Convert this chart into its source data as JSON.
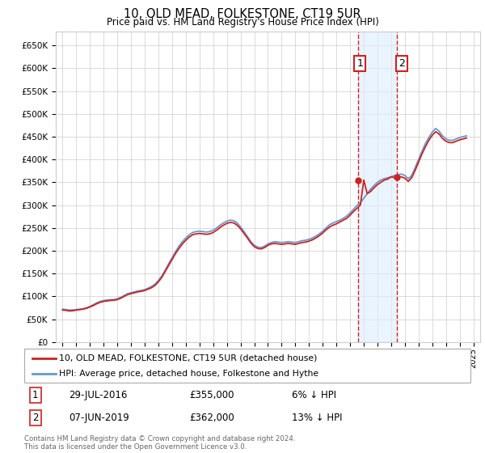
{
  "title": "10, OLD MEAD, FOLKESTONE, CT19 5UR",
  "subtitle": "Price paid vs. HM Land Registry's House Price Index (HPI)",
  "ylabel_ticks": [
    "£0",
    "£50K",
    "£100K",
    "£150K",
    "£200K",
    "£250K",
    "£300K",
    "£350K",
    "£400K",
    "£450K",
    "£500K",
    "£550K",
    "£600K",
    "£650K"
  ],
  "ytick_values": [
    0,
    50000,
    100000,
    150000,
    200000,
    250000,
    300000,
    350000,
    400000,
    450000,
    500000,
    550000,
    600000,
    650000
  ],
  "ylim": [
    0,
    680000
  ],
  "xlim_start": 1994.5,
  "xlim_end": 2025.5,
  "background_color": "#ffffff",
  "grid_color": "#cccccc",
  "hpi_color": "#6699cc",
  "price_color": "#cc2222",
  "marker1_x": 2016.57,
  "marker1_y": 355000,
  "marker2_x": 2019.44,
  "marker2_y": 362000,
  "marker_shading_color": "#ddeeff",
  "legend_label1": "10, OLD MEAD, FOLKESTONE, CT19 5UR (detached house)",
  "legend_label2": "HPI: Average price, detached house, Folkestone and Hythe",
  "annotation1_label": "1",
  "annotation2_label": "2",
  "note1_num": "1",
  "note1_date": "29-JUL-2016",
  "note1_price": "£355,000",
  "note1_hpi": "6% ↓ HPI",
  "note2_num": "2",
  "note2_date": "07-JUN-2019",
  "note2_price": "£362,000",
  "note2_hpi": "13% ↓ HPI",
  "copyright": "Contains HM Land Registry data © Crown copyright and database right 2024.\nThis data is licensed under the Open Government Licence v3.0.",
  "hpi_data": {
    "years": [
      1995.0,
      1995.25,
      1995.5,
      1995.75,
      1996.0,
      1996.25,
      1996.5,
      1996.75,
      1997.0,
      1997.25,
      1997.5,
      1997.75,
      1998.0,
      1998.25,
      1998.5,
      1998.75,
      1999.0,
      1999.25,
      1999.5,
      1999.75,
      2000.0,
      2000.25,
      2000.5,
      2000.75,
      2001.0,
      2001.25,
      2001.5,
      2001.75,
      2002.0,
      2002.25,
      2002.5,
      2002.75,
      2003.0,
      2003.25,
      2003.5,
      2003.75,
      2004.0,
      2004.25,
      2004.5,
      2004.75,
      2005.0,
      2005.25,
      2005.5,
      2005.75,
      2006.0,
      2006.25,
      2006.5,
      2006.75,
      2007.0,
      2007.25,
      2007.5,
      2007.75,
      2008.0,
      2008.25,
      2008.5,
      2008.75,
      2009.0,
      2009.25,
      2009.5,
      2009.75,
      2010.0,
      2010.25,
      2010.5,
      2010.75,
      2011.0,
      2011.25,
      2011.5,
      2011.75,
      2012.0,
      2012.25,
      2012.5,
      2012.75,
      2013.0,
      2013.25,
      2013.5,
      2013.75,
      2014.0,
      2014.25,
      2014.5,
      2014.75,
      2015.0,
      2015.25,
      2015.5,
      2015.75,
      2016.0,
      2016.25,
      2016.5,
      2016.75,
      2017.0,
      2017.25,
      2017.5,
      2017.75,
      2018.0,
      2018.25,
      2018.5,
      2018.75,
      2019.0,
      2019.25,
      2019.5,
      2019.75,
      2020.0,
      2020.25,
      2020.5,
      2020.75,
      2021.0,
      2021.25,
      2021.5,
      2021.75,
      2022.0,
      2022.25,
      2022.5,
      2022.75,
      2023.0,
      2023.25,
      2023.5,
      2023.75,
      2024.0,
      2024.25,
      2024.5
    ],
    "values": [
      72000,
      71000,
      70000,
      70500,
      71000,
      72000,
      73000,
      75000,
      78000,
      82000,
      86000,
      89000,
      91000,
      92000,
      93000,
      93000,
      95000,
      98000,
      102000,
      106000,
      108000,
      110000,
      112000,
      113000,
      115000,
      118000,
      122000,
      127000,
      135000,
      145000,
      158000,
      172000,
      185000,
      198000,
      210000,
      220000,
      228000,
      235000,
      240000,
      242000,
      243000,
      242000,
      241000,
      242000,
      245000,
      250000,
      256000,
      261000,
      265000,
      267000,
      266000,
      261000,
      252000,
      242000,
      231000,
      220000,
      212000,
      208000,
      207000,
      210000,
      215000,
      218000,
      220000,
      219000,
      218000,
      219000,
      220000,
      219000,
      218000,
      220000,
      222000,
      223000,
      225000,
      228000,
      232000,
      237000,
      243000,
      250000,
      257000,
      261000,
      264000,
      267000,
      271000,
      276000,
      283000,
      291000,
      299000,
      305000,
      315000,
      325000,
      335000,
      343000,
      350000,
      355000,
      358000,
      360000,
      362000,
      365000,
      367000,
      368000,
      365000,
      358000,
      365000,
      382000,
      400000,
      418000,
      435000,
      448000,
      460000,
      468000,
      462000,
      452000,
      445000,
      442000,
      442000,
      445000,
      448000,
      450000,
      452000
    ]
  },
  "price_data": {
    "years": [
      1995.0,
      1995.25,
      1995.5,
      1995.75,
      1996.0,
      1996.25,
      1996.5,
      1996.75,
      1997.0,
      1997.25,
      1997.5,
      1997.75,
      1998.0,
      1998.25,
      1998.5,
      1998.75,
      1999.0,
      1999.25,
      1999.5,
      1999.75,
      2000.0,
      2000.25,
      2000.5,
      2000.75,
      2001.0,
      2001.25,
      2001.5,
      2001.75,
      2002.0,
      2002.25,
      2002.5,
      2002.75,
      2003.0,
      2003.25,
      2003.5,
      2003.75,
      2004.0,
      2004.25,
      2004.5,
      2004.75,
      2005.0,
      2005.25,
      2005.5,
      2005.75,
      2006.0,
      2006.25,
      2006.5,
      2006.75,
      2007.0,
      2007.25,
      2007.5,
      2007.75,
      2008.0,
      2008.25,
      2008.5,
      2008.75,
      2009.0,
      2009.25,
      2009.5,
      2009.75,
      2010.0,
      2010.25,
      2010.5,
      2010.75,
      2011.0,
      2011.25,
      2011.5,
      2011.75,
      2012.0,
      2012.25,
      2012.5,
      2012.75,
      2013.0,
      2013.25,
      2013.5,
      2013.75,
      2014.0,
      2014.25,
      2014.5,
      2014.75,
      2015.0,
      2015.25,
      2015.5,
      2015.75,
      2016.0,
      2016.25,
      2016.5,
      2016.75,
      2017.0,
      2017.25,
      2017.5,
      2017.75,
      2018.0,
      2018.25,
      2018.5,
      2018.75,
      2019.0,
      2019.25,
      2019.5,
      2019.75,
      2020.0,
      2020.25,
      2020.5,
      2020.75,
      2021.0,
      2021.25,
      2021.5,
      2021.75,
      2022.0,
      2022.25,
      2022.5,
      2022.75,
      2023.0,
      2023.25,
      2023.5,
      2023.75,
      2024.0,
      2024.25,
      2024.5
    ],
    "values": [
      70000,
      69500,
      68000,
      68500,
      70000,
      71000,
      72000,
      74000,
      77000,
      80000,
      84000,
      87000,
      89000,
      90000,
      91000,
      91500,
      93000,
      96000,
      100000,
      104000,
      106000,
      108000,
      110000,
      111000,
      113000,
      116000,
      119000,
      124000,
      132000,
      142000,
      155000,
      168000,
      181000,
      194000,
      205000,
      215000,
      223000,
      230000,
      235000,
      237000,
      238000,
      237000,
      236000,
      237000,
      240000,
      245000,
      251000,
      256000,
      260000,
      262000,
      261000,
      256000,
      248000,
      238000,
      228000,
      217000,
      209000,
      205000,
      204000,
      207000,
      212000,
      215000,
      216000,
      215000,
      214000,
      215000,
      216000,
      215000,
      214000,
      216000,
      218000,
      219000,
      221000,
      224000,
      228000,
      233000,
      239000,
      246000,
      252000,
      256000,
      259000,
      263000,
      267000,
      271000,
      278000,
      286000,
      293000,
      300000,
      355000,
      325000,
      330000,
      338000,
      345000,
      350000,
      355000,
      357000,
      362000,
      360000,
      362000,
      362000,
      359000,
      352000,
      360000,
      376000,
      394000,
      412000,
      428000,
      442000,
      453000,
      461000,
      456000,
      446000,
      440000,
      437000,
      437000,
      440000,
      443000,
      445000,
      447000
    ]
  }
}
